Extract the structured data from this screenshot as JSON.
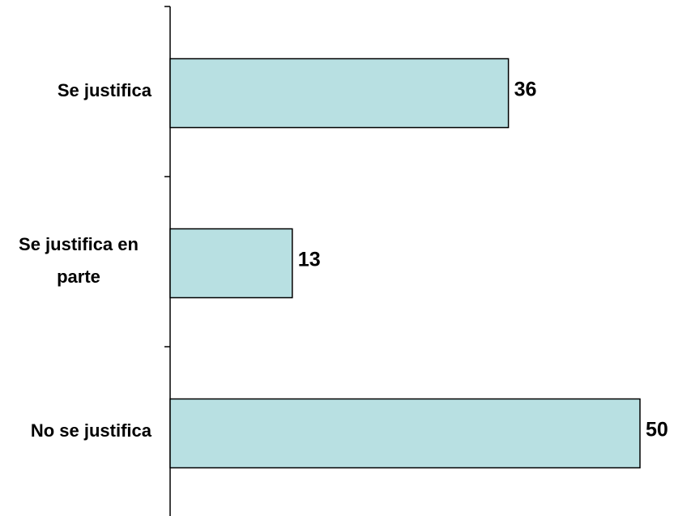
{
  "chart_data": {
    "type": "bar",
    "orientation": "horizontal",
    "categories": [
      [
        "Se justifica"
      ],
      [
        "Se justifica en",
        "parte"
      ],
      [
        "No se justifica"
      ]
    ],
    "values": [
      36,
      13,
      50
    ],
    "value_labels": [
      "36",
      "13",
      "50"
    ],
    "xlim": [
      0,
      50
    ],
    "grid": false,
    "legend": "none",
    "colors": {
      "bar_fill": "#b8e0e2",
      "bar_stroke": "#000000",
      "axis": "#000000",
      "text": "#000000"
    }
  }
}
